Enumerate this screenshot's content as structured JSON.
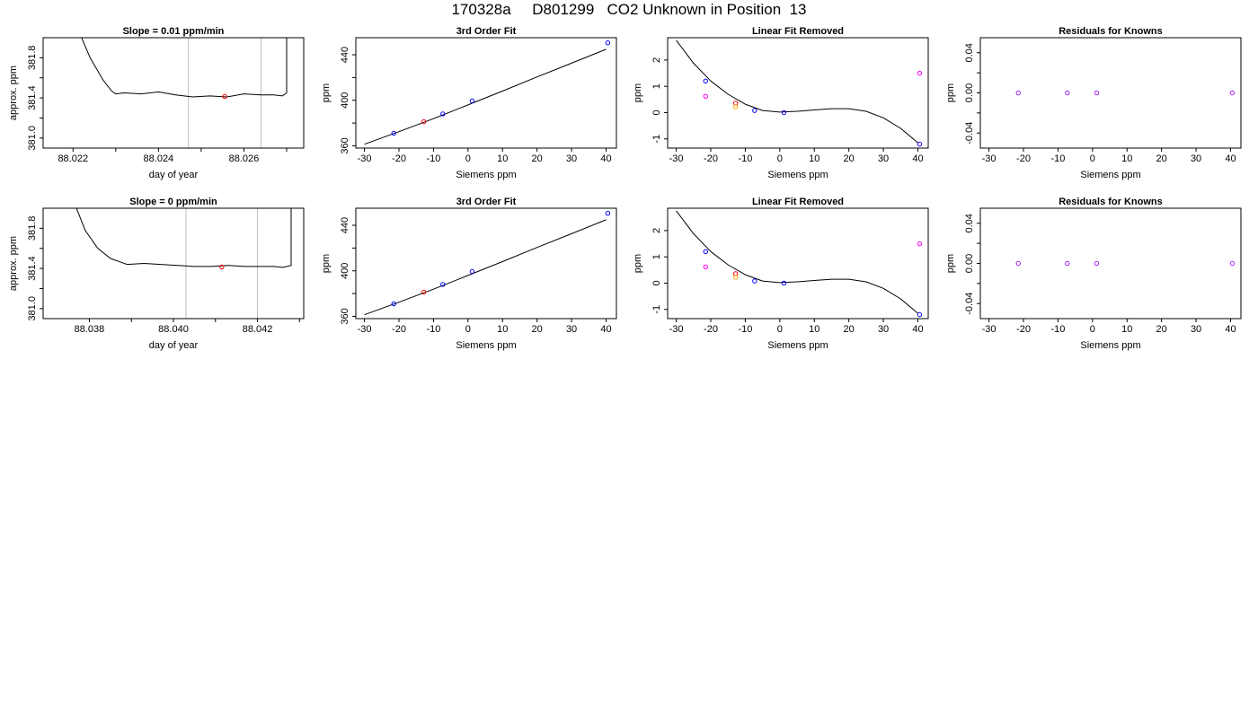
{
  "page_title": "170328a     D801299   CO2 Unknown in Position  13",
  "colors": {
    "trace": "#000000",
    "marker_blue": "#0000ff",
    "marker_red": "#ff0000",
    "marker_orange": "#ffa500",
    "marker_magenta": "#ff00ff",
    "marker_purple": "#a020f0",
    "window_lines": "#bebebe",
    "axis": "#000000"
  },
  "chart_data": [
    {
      "type": "line",
      "title": "Slope =  0.01  ppm/min",
      "xlabel": "day of year",
      "ylabel": "approx. ppm",
      "xlim": [
        88.0213,
        88.0274
      ],
      "ylim": [
        380.9,
        382.0
      ],
      "xticks": [
        88.022,
        88.023,
        88.024,
        88.025,
        88.026,
        88.027
      ],
      "xtick_labels": [
        "88.022",
        "",
        "88.024",
        "",
        "88.026",
        ""
      ],
      "yticks": [
        381.0,
        381.2,
        381.4,
        381.6,
        381.8
      ],
      "ytick_labels": [
        "381.0",
        "",
        "381.4",
        "",
        "381.8"
      ],
      "grid": false,
      "vlines": [
        88.0247,
        88.0264
      ],
      "series": [
        {
          "x": [
            88.0221,
            88.0224,
            88.0227,
            88.0229,
            88.023,
            88.0232,
            88.0236,
            88.024,
            88.0244,
            88.0248,
            88.0252,
            88.0256,
            88.026,
            88.0264,
            88.0267,
            88.0269,
            88.027,
            88.027
          ],
          "y": [
            382.1,
            381.8,
            381.58,
            381.47,
            381.44,
            381.45,
            381.44,
            381.46,
            381.43,
            381.41,
            381.42,
            381.41,
            381.44,
            381.43,
            381.43,
            381.42,
            381.45,
            382.1
          ]
        }
      ],
      "points": [
        {
          "x": 88.02555,
          "y": 381.415,
          "color": "#ff0000"
        }
      ]
    },
    {
      "type": "scatter",
      "title": "3rd Order Fit",
      "xlabel": "Siemens ppm",
      "ylabel": "ppm",
      "xlim": [
        -32.5,
        43.0
      ],
      "ylim": [
        358,
        455
      ],
      "xticks": [
        -30,
        -20,
        -10,
        0,
        10,
        20,
        30,
        40
      ],
      "yticks": [
        360,
        380,
        400,
        420,
        440
      ],
      "ytick_labels": [
        "360",
        "",
        "400",
        "",
        "440"
      ],
      "grid": false,
      "fit_curve": {
        "x": [
          -30,
          -20,
          -10,
          0,
          10,
          20,
          30,
          40
        ],
        "y": [
          361.4,
          372.4,
          383.9,
          395.9,
          408.1,
          420.5,
          432.6,
          444.8
        ]
      },
      "points": [
        {
          "x": -21.5,
          "y": 371.0,
          "color": "#0000ff"
        },
        {
          "x": -12.8,
          "y": 381.2,
          "color": "#ff0000"
        },
        {
          "x": -7.3,
          "y": 388.0,
          "color": "#0000ff"
        },
        {
          "x": 1.2,
          "y": 399.5,
          "color": "#0000ff"
        },
        {
          "x": 40.5,
          "y": 450.5,
          "color": "#0000ff"
        }
      ]
    },
    {
      "type": "scatter",
      "title": "Linear Fit Removed",
      "xlabel": "Siemens ppm",
      "ylabel": "ppm",
      "xlim": [
        -32.5,
        43.0
      ],
      "ylim": [
        -1.35,
        2.85
      ],
      "xticks": [
        -30,
        -20,
        -10,
        0,
        10,
        20,
        30,
        40
      ],
      "yticks": [
        -1,
        0,
        1,
        2
      ],
      "grid": false,
      "fit_curve": {
        "x": [
          -30,
          -25,
          -20,
          -15,
          -10,
          -5,
          0,
          5,
          10,
          15,
          20,
          25,
          30,
          35,
          40
        ],
        "y": [
          2.75,
          1.88,
          1.2,
          0.7,
          0.32,
          0.08,
          0.02,
          0.05,
          0.1,
          0.15,
          0.15,
          0.05,
          -0.2,
          -0.6,
          -1.15
        ]
      },
      "points": [
        {
          "x": -21.5,
          "y": 1.2,
          "color": "#0000ff"
        },
        {
          "x": -21.5,
          "y": 0.62,
          "color": "#ff00ff"
        },
        {
          "x": -12.8,
          "y": 0.36,
          "color": "#ff0000"
        },
        {
          "x": -12.8,
          "y": 0.22,
          "color": "#ffa500"
        },
        {
          "x": -7.3,
          "y": 0.08,
          "color": "#0000ff"
        },
        {
          "x": 1.2,
          "y": 0.0,
          "color": "#0000ff"
        },
        {
          "x": 40.5,
          "y": 1.5,
          "color": "#ff00ff"
        },
        {
          "x": 40.5,
          "y": -1.2,
          "color": "#0000ff"
        }
      ]
    },
    {
      "type": "scatter",
      "title": "Residuals for Knowns",
      "xlabel": "Siemens ppm",
      "ylabel": "ppm",
      "xlim": [
        -32.5,
        43.0
      ],
      "ylim": [
        -0.055,
        0.055
      ],
      "xticks": [
        -30,
        -20,
        -10,
        0,
        10,
        20,
        30,
        40
      ],
      "yticks": [
        -0.04,
        -0.02,
        0.0,
        0.02,
        0.04
      ],
      "ytick_labels": [
        "-0.04",
        "",
        "0.00",
        "",
        "0.04"
      ],
      "grid": false,
      "points": [
        {
          "x": -21.5,
          "y": 0.0,
          "color": "#a020f0"
        },
        {
          "x": -7.3,
          "y": 0.0,
          "color": "#a020f0"
        },
        {
          "x": 1.2,
          "y": 0.0,
          "color": "#a020f0"
        },
        {
          "x": 40.5,
          "y": 0.0,
          "color": "#a020f0"
        }
      ]
    },
    {
      "type": "line",
      "title": "Slope =  0  ppm/min",
      "xlabel": "day of year",
      "ylabel": "approx. ppm",
      "xlim": [
        88.0369,
        88.0431
      ],
      "ylim": [
        380.9,
        382.0
      ],
      "xticks": [
        88.038,
        88.039,
        88.04,
        88.041,
        88.042,
        88.043
      ],
      "xtick_labels": [
        "88.038",
        "",
        "88.040",
        "",
        "88.042",
        ""
      ],
      "yticks": [
        381.0,
        381.2,
        381.4,
        381.6,
        381.8
      ],
      "ytick_labels": [
        "381.0",
        "",
        "381.4",
        "",
        "381.8"
      ],
      "grid": false,
      "vlines": [
        88.0403,
        88.042
      ],
      "series": [
        {
          "x": [
            88.0376,
            88.0379,
            88.0382,
            88.0385,
            88.0387,
            88.0389,
            88.0393,
            88.0397,
            88.0401,
            88.0405,
            88.0409,
            88.0413,
            88.0417,
            88.0421,
            88.0424,
            88.0426,
            88.0428,
            88.0428
          ],
          "y": [
            382.1,
            381.78,
            381.6,
            381.5,
            381.47,
            381.44,
            381.45,
            381.44,
            381.43,
            381.42,
            381.42,
            381.43,
            381.42,
            381.42,
            381.42,
            381.41,
            381.43,
            382.1
          ]
        }
      ],
      "points": [
        {
          "x": 88.04115,
          "y": 381.415,
          "color": "#ff0000"
        }
      ]
    },
    {
      "type": "scatter",
      "title": "3rd Order Fit",
      "xlabel": "Siemens ppm",
      "ylabel": "ppm",
      "xlim": [
        -32.5,
        43.0
      ],
      "ylim": [
        358,
        455
      ],
      "xticks": [
        -30,
        -20,
        -10,
        0,
        10,
        20,
        30,
        40
      ],
      "yticks": [
        360,
        380,
        400,
        420,
        440
      ],
      "ytick_labels": [
        "360",
        "",
        "400",
        "",
        "440"
      ],
      "grid": false,
      "fit_curve": {
        "x": [
          -30,
          -20,
          -10,
          0,
          10,
          20,
          30,
          40
        ],
        "y": [
          361.4,
          372.4,
          383.9,
          395.9,
          408.1,
          420.5,
          432.6,
          444.8
        ]
      },
      "points": [
        {
          "x": -21.5,
          "y": 371.0,
          "color": "#0000ff"
        },
        {
          "x": -12.8,
          "y": 381.2,
          "color": "#ff0000"
        },
        {
          "x": -7.3,
          "y": 388.0,
          "color": "#0000ff"
        },
        {
          "x": 1.2,
          "y": 399.5,
          "color": "#0000ff"
        },
        {
          "x": 40.5,
          "y": 450.5,
          "color": "#0000ff"
        }
      ]
    },
    {
      "type": "scatter",
      "title": "Linear Fit Removed",
      "xlabel": "Siemens ppm",
      "ylabel": "ppm",
      "xlim": [
        -32.5,
        43.0
      ],
      "ylim": [
        -1.35,
        2.85
      ],
      "xticks": [
        -30,
        -20,
        -10,
        0,
        10,
        20,
        30,
        40
      ],
      "yticks": [
        -1,
        0,
        1,
        2
      ],
      "grid": false,
      "fit_curve": {
        "x": [
          -30,
          -25,
          -20,
          -15,
          -10,
          -5,
          0,
          5,
          10,
          15,
          20,
          25,
          30,
          35,
          40
        ],
        "y": [
          2.75,
          1.88,
          1.2,
          0.7,
          0.32,
          0.08,
          0.02,
          0.05,
          0.1,
          0.15,
          0.15,
          0.05,
          -0.2,
          -0.6,
          -1.15
        ]
      },
      "points": [
        {
          "x": -21.5,
          "y": 1.2,
          "color": "#0000ff"
        },
        {
          "x": -21.5,
          "y": 0.62,
          "color": "#ff00ff"
        },
        {
          "x": -12.8,
          "y": 0.36,
          "color": "#ff0000"
        },
        {
          "x": -12.8,
          "y": 0.22,
          "color": "#ffa500"
        },
        {
          "x": -7.3,
          "y": 0.08,
          "color": "#0000ff"
        },
        {
          "x": 1.2,
          "y": 0.0,
          "color": "#0000ff"
        },
        {
          "x": 40.5,
          "y": 1.5,
          "color": "#ff00ff"
        },
        {
          "x": 40.5,
          "y": -1.2,
          "color": "#0000ff"
        }
      ]
    },
    {
      "type": "scatter",
      "title": "Residuals for Knowns",
      "xlabel": "Siemens ppm",
      "ylabel": "ppm",
      "xlim": [
        -32.5,
        43.0
      ],
      "ylim": [
        -0.055,
        0.055
      ],
      "xticks": [
        -30,
        -20,
        -10,
        0,
        10,
        20,
        30,
        40
      ],
      "yticks": [
        -0.04,
        -0.02,
        0.0,
        0.02,
        0.04
      ],
      "ytick_labels": [
        "-0.04",
        "",
        "0.00",
        "",
        "0.04"
      ],
      "grid": false,
      "points": [
        {
          "x": -21.5,
          "y": 0.0,
          "color": "#a020f0"
        },
        {
          "x": -7.3,
          "y": 0.0,
          "color": "#a020f0"
        },
        {
          "x": 1.2,
          "y": 0.0,
          "color": "#a020f0"
        },
        {
          "x": 40.5,
          "y": 0.0,
          "color": "#a020f0"
        }
      ]
    }
  ]
}
